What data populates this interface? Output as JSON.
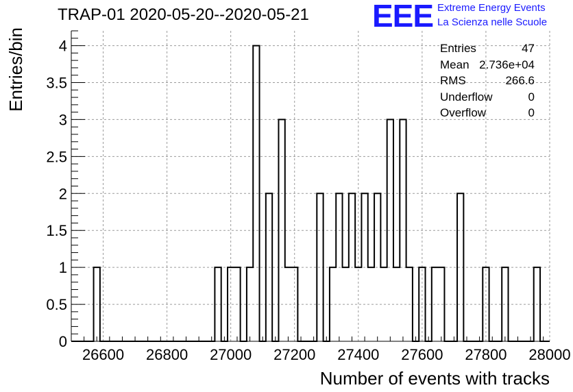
{
  "title": "TRAP-01 2020-05-20--2020-05-21",
  "logo": {
    "mark": "EEE",
    "line1": "Extreme Energy Events",
    "line2": "La Scienza nelle Scuole",
    "color": "#1a1aff"
  },
  "stats": [
    {
      "label": "Entries",
      "value": "47"
    },
    {
      "label": "Mean",
      "value": "2.736e+04"
    },
    {
      "label": "RMS",
      "value": "266.6"
    },
    {
      "label": "Underflow",
      "value": "0"
    },
    {
      "label": "Overflow",
      "value": "0"
    }
  ],
  "chart_data": {
    "type": "histogram",
    "xlabel": "Number of events with tracks",
    "ylabel": "Entries/bin",
    "xlim": [
      26500,
      28000
    ],
    "ylim": [
      0,
      4.2
    ],
    "bin_width": 20,
    "grid": true,
    "xticks": [
      26600,
      26800,
      27000,
      27200,
      27400,
      27600,
      27800,
      28000
    ],
    "yticks": [
      0,
      0.5,
      1,
      1.5,
      2,
      2.5,
      3,
      3.5,
      4
    ],
    "bins": [
      {
        "x": 26570,
        "count": 1
      },
      {
        "x": 26950,
        "count": 1
      },
      {
        "x": 26990,
        "count": 1
      },
      {
        "x": 27010,
        "count": 1
      },
      {
        "x": 27050,
        "count": 1
      },
      {
        "x": 27070,
        "count": 4
      },
      {
        "x": 27110,
        "count": 2
      },
      {
        "x": 27150,
        "count": 3
      },
      {
        "x": 27170,
        "count": 1
      },
      {
        "x": 27190,
        "count": 1
      },
      {
        "x": 27270,
        "count": 2
      },
      {
        "x": 27310,
        "count": 1
      },
      {
        "x": 27330,
        "count": 2
      },
      {
        "x": 27350,
        "count": 1
      },
      {
        "x": 27370,
        "count": 2
      },
      {
        "x": 27390,
        "count": 1
      },
      {
        "x": 27410,
        "count": 2
      },
      {
        "x": 27430,
        "count": 1
      },
      {
        "x": 27450,
        "count": 2
      },
      {
        "x": 27470,
        "count": 1
      },
      {
        "x": 27490,
        "count": 3
      },
      {
        "x": 27510,
        "count": 1
      },
      {
        "x": 27530,
        "count": 3
      },
      {
        "x": 27550,
        "count": 1
      },
      {
        "x": 27590,
        "count": 1
      },
      {
        "x": 27630,
        "count": 1
      },
      {
        "x": 27650,
        "count": 1
      },
      {
        "x": 27710,
        "count": 2
      },
      {
        "x": 27790,
        "count": 1
      },
      {
        "x": 27850,
        "count": 1
      },
      {
        "x": 27950,
        "count": 1
      }
    ],
    "line_color": "#000000",
    "grid_color": "#9a9a9a"
  }
}
